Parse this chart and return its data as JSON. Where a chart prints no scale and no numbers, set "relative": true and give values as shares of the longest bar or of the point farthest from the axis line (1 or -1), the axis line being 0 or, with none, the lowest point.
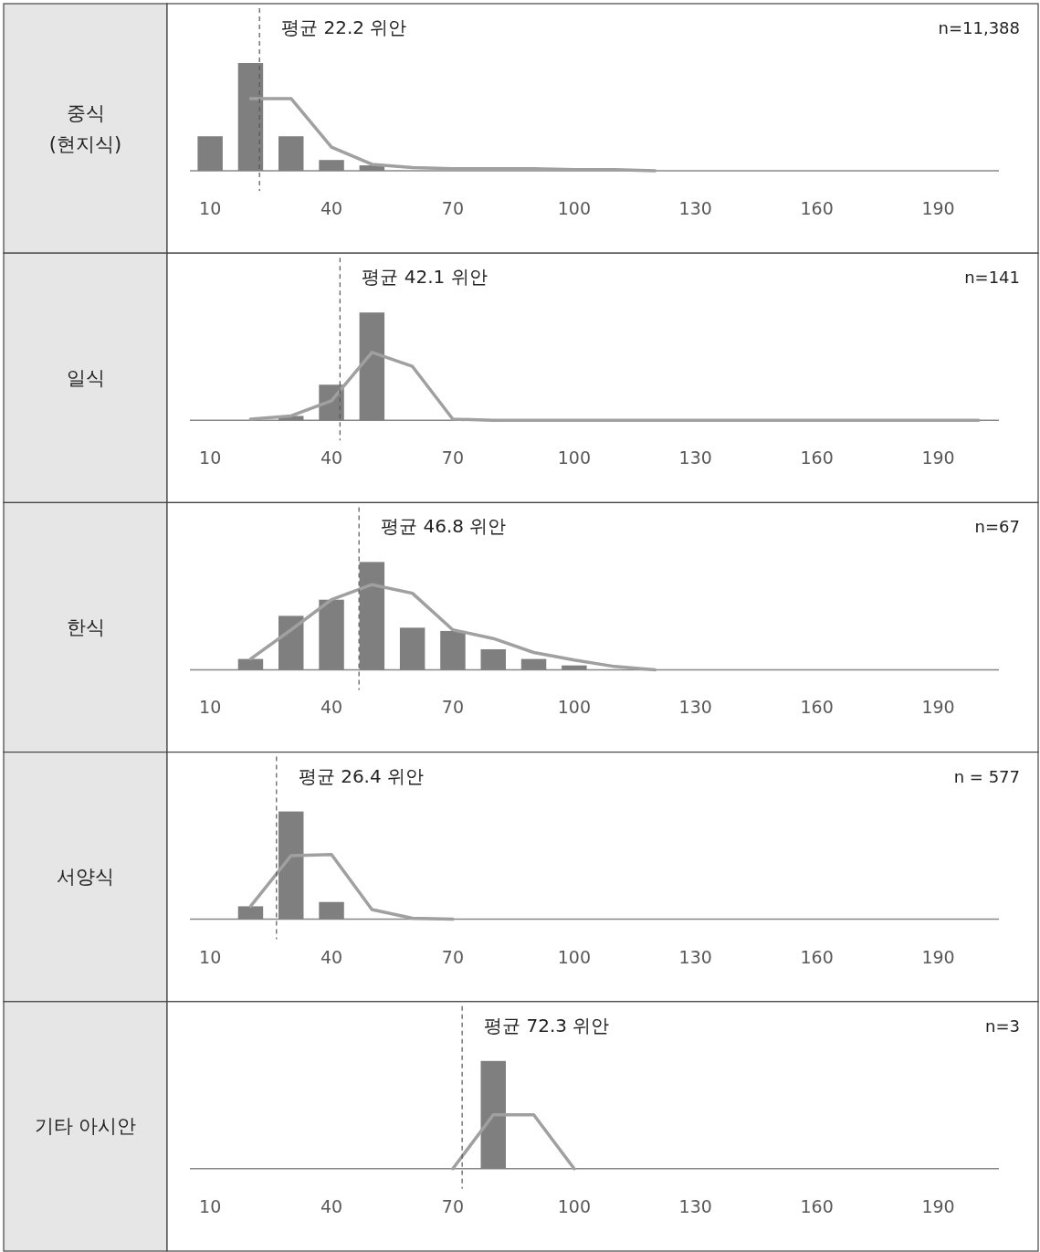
{
  "chart_data": [
    {
      "type": "bar",
      "title": "중식\n(현지식)",
      "relative": true,
      "xlim": [
        5,
        205
      ],
      "xticks": [
        10,
        40,
        70,
        100,
        130,
        160,
        190
      ],
      "series": [
        {
          "color": "#7f7f7f",
          "x": [
            10,
            20,
            30,
            40,
            50
          ],
          "values": [
            0.32,
            1,
            0.32,
            0.1,
            0.05
          ]
        },
        {
          "type": "line",
          "color": "#a0a0a0",
          "x": [
            20,
            30,
            40,
            50,
            60,
            70,
            80,
            90,
            100,
            110,
            120
          ],
          "values": [
            0.67,
            0.67,
            0.22,
            0.06,
            0.03,
            0.02,
            0.02,
            0.02,
            0.01,
            0.01,
            0
          ]
        }
      ],
      "ref_lines": [
        {
          "axis": "x",
          "value": 22.2,
          "label": "평균 22.2 위안",
          "line_style": "dashed",
          "color": "#555555"
        }
      ],
      "annotations": [
        "n=11,388"
      ]
    },
    {
      "type": "bar",
      "title": "일식",
      "relative": true,
      "xlim": [
        5,
        205
      ],
      "xticks": [
        10,
        40,
        70,
        100,
        130,
        160,
        190
      ],
      "series": [
        {
          "color": "#7f7f7f",
          "x": [
            30,
            40,
            50
          ],
          "values": [
            0.04,
            0.33,
            1
          ]
        },
        {
          "type": "line",
          "color": "#a0a0a0",
          "x": [
            20,
            30,
            40,
            50,
            60,
            70,
            80,
            90,
            100,
            110,
            120,
            130,
            140,
            150,
            160,
            170,
            180,
            190,
            200
          ],
          "values": [
            0.01,
            0.04,
            0.18,
            0.63,
            0.5,
            0.01,
            0,
            0,
            0,
            0,
            0,
            0,
            0,
            0,
            0,
            0,
            0,
            0,
            0
          ]
        }
      ],
      "ref_lines": [
        {
          "axis": "x",
          "value": 42.1,
          "label": "평균 42.1 위안",
          "line_style": "dashed",
          "color": "#555555"
        }
      ],
      "annotations": [
        "n=141"
      ]
    },
    {
      "type": "bar",
      "title": "한식",
      "relative": true,
      "xlim": [
        5,
        205
      ],
      "xticks": [
        10,
        40,
        70,
        100,
        130,
        160,
        190
      ],
      "series": [
        {
          "color": "#7f7f7f",
          "x": [
            20,
            30,
            40,
            50,
            60,
            70,
            80,
            90,
            100
          ],
          "values": [
            0.1,
            0.5,
            0.65,
            1,
            0.39,
            0.36,
            0.19,
            0.1,
            0.04
          ]
        },
        {
          "type": "line",
          "color": "#a0a0a0",
          "x": [
            20,
            30,
            40,
            50,
            60,
            70,
            80,
            90,
            100,
            110,
            120
          ],
          "values": [
            0.1,
            0.37,
            0.65,
            0.79,
            0.71,
            0.37,
            0.29,
            0.16,
            0.09,
            0.03,
            0
          ]
        }
      ],
      "ref_lines": [
        {
          "axis": "x",
          "value": 46.8,
          "label": "평균 46.8 위안",
          "line_style": "dashed",
          "color": "#555555"
        }
      ],
      "annotations": [
        "n=67"
      ]
    },
    {
      "type": "bar",
      "title": "서양식",
      "relative": true,
      "xlim": [
        5,
        205
      ],
      "xticks": [
        10,
        40,
        70,
        100,
        130,
        160,
        190
      ],
      "series": [
        {
          "color": "#7f7f7f",
          "x": [
            20,
            30,
            40
          ],
          "values": [
            0.12,
            1,
            0.16
          ]
        },
        {
          "type": "line",
          "color": "#a0a0a0",
          "x": [
            20,
            30,
            40,
            50,
            60,
            70
          ],
          "values": [
            0.12,
            0.59,
            0.6,
            0.09,
            0.01,
            0
          ]
        }
      ],
      "ref_lines": [
        {
          "axis": "x",
          "value": 26.4,
          "label": "평균 26.4 위안",
          "line_style": "dashed",
          "color": "#555555"
        }
      ],
      "annotations": [
        "n = 577"
      ]
    },
    {
      "type": "bar",
      "title": "기타 아시안",
      "relative": true,
      "xlim": [
        5,
        205
      ],
      "xticks": [
        10,
        40,
        70,
        100,
        130,
        160,
        190
      ],
      "series": [
        {
          "color": "#7f7f7f",
          "x": [
            80
          ],
          "values": [
            1
          ]
        },
        {
          "type": "line",
          "color": "#a0a0a0",
          "x": [
            70,
            80,
            90,
            100
          ],
          "values": [
            0,
            0.5,
            0.5,
            0
          ]
        }
      ],
      "ref_lines": [
        {
          "axis": "x",
          "value": 72.3,
          "label": "평균 72.3 위안",
          "line_style": "dashed",
          "color": "#555555"
        }
      ],
      "annotations": [
        "n=3"
      ]
    }
  ]
}
